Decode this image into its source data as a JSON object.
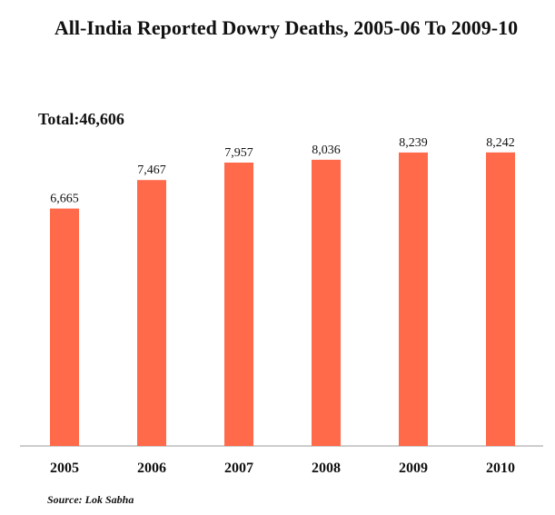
{
  "chart_data": {
    "type": "bar",
    "title": "All-India Reported Dowry Deaths, 2005-06 To 2009-10",
    "total_label": "Total:46,606",
    "categories": [
      "2005",
      "2006",
      "2007",
      "2008",
      "2009",
      "2010"
    ],
    "values": [
      6665,
      7467,
      7957,
      8036,
      8239,
      8242
    ],
    "value_labels": [
      "6,665",
      "7,467",
      "7,957",
      "8,036",
      "8,239",
      "8,242"
    ],
    "ylim": [
      0,
      8900
    ],
    "bar_color": "#ff6a4a",
    "axis_color": "#999999",
    "xlabel": "",
    "ylabel": "",
    "grid": false,
    "source": "Source: Lok Sabha"
  }
}
